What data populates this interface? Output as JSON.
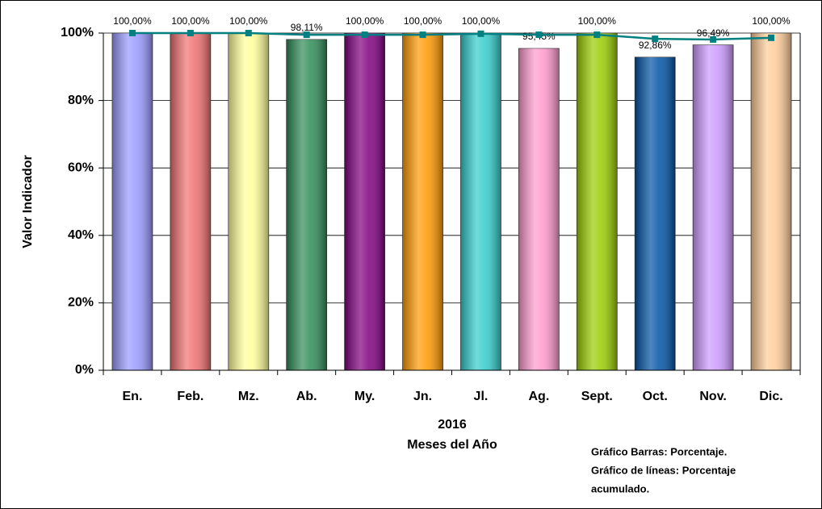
{
  "chart_data": {
    "type": "bar",
    "y_label": "Valor Indicador",
    "x_label_lines": [
      "2016",
      "Meses del Año"
    ],
    "annotation_lines": [
      "Gráfico Barras: Porcentaje.",
      "Gráfico de líneas: Porcentaje",
      "acumulado."
    ],
    "categories": [
      "En.",
      "Feb.",
      "Mz.",
      "Ab.",
      "My.",
      "Jn.",
      "Jl.",
      "Ag.",
      "Sept.",
      "Oct.",
      "Nov.",
      "Dic."
    ],
    "series": [
      {
        "type": "bar",
        "colors": [
          "#9999ff",
          "#f07070",
          "#ffff99",
          "#2e8b57",
          "#800080",
          "#ff9900",
          "#33cccc",
          "#ff99cc",
          "#99cc00",
          "#0052a5",
          "#cc99ff",
          "#ffcc99"
        ],
        "values": [
          100,
          100,
          100,
          98.11,
          100,
          100,
          100,
          95.45,
          100,
          92.86,
          96.49,
          100
        ],
        "value_labels": [
          "100,00%",
          "100,00%",
          "100,00%",
          "98,11%",
          "100,00%",
          "100,00%",
          "100,00%",
          "95,45%",
          "100,00%",
          "92,86%",
          "96,49%",
          "100,00%"
        ]
      },
      {
        "type": "line",
        "color": "#008080",
        "values": [
          100,
          100,
          100,
          99.5,
          99.5,
          99.5,
          99.8,
          99.5,
          99.5,
          98.3,
          98.1,
          98.6
        ]
      }
    ],
    "ylim": [
      0,
      100
    ],
    "yticks": [
      {
        "value": 0,
        "label": "0%"
      },
      {
        "value": 20,
        "label": "20%"
      },
      {
        "value": 40,
        "label": "40%"
      },
      {
        "value": 60,
        "label": "60%"
      },
      {
        "value": 80,
        "label": "80%"
      },
      {
        "value": 100,
        "label": "100%"
      }
    ],
    "grid": true
  }
}
